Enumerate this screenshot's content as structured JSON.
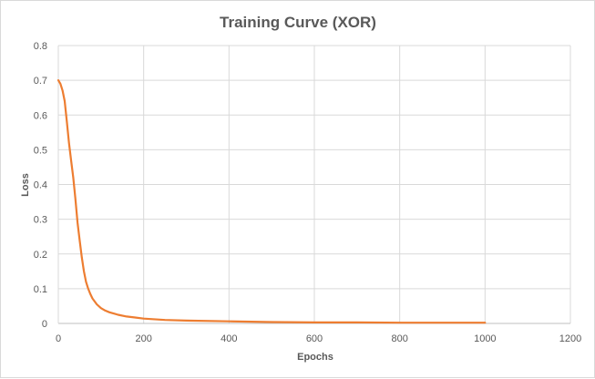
{
  "chart_data": {
    "type": "line",
    "title": "Training Curve (XOR)",
    "xlabel": "Epochs",
    "ylabel": "Loss",
    "xlim": [
      0,
      1200
    ],
    "ylim": [
      0,
      0.8
    ],
    "x_ticks": [
      "0",
      "200",
      "400",
      "600",
      "800",
      "1000",
      "1200"
    ],
    "y_ticks": [
      "0",
      "0.1",
      "0.2",
      "0.3",
      "0.4",
      "0.5",
      "0.6",
      "0.7",
      "0.8"
    ],
    "grid": true,
    "legend": "none",
    "series": [
      {
        "color": "#ed7d31",
        "x": [
          0,
          5,
          10,
          15,
          20,
          25,
          30,
          35,
          40,
          45,
          50,
          55,
          60,
          65,
          70,
          75,
          80,
          90,
          100,
          110,
          120,
          140,
          160,
          180,
          200,
          250,
          300,
          400,
          500,
          600,
          700,
          800,
          900,
          1000
        ],
        "y": [
          0.7,
          0.69,
          0.67,
          0.64,
          0.58,
          0.52,
          0.47,
          0.42,
          0.36,
          0.29,
          0.24,
          0.19,
          0.15,
          0.12,
          0.1,
          0.085,
          0.072,
          0.055,
          0.044,
          0.037,
          0.032,
          0.025,
          0.02,
          0.017,
          0.014,
          0.01,
          0.008,
          0.006,
          0.004,
          0.003,
          0.003,
          0.002,
          0.002,
          0.002
        ]
      }
    ]
  }
}
